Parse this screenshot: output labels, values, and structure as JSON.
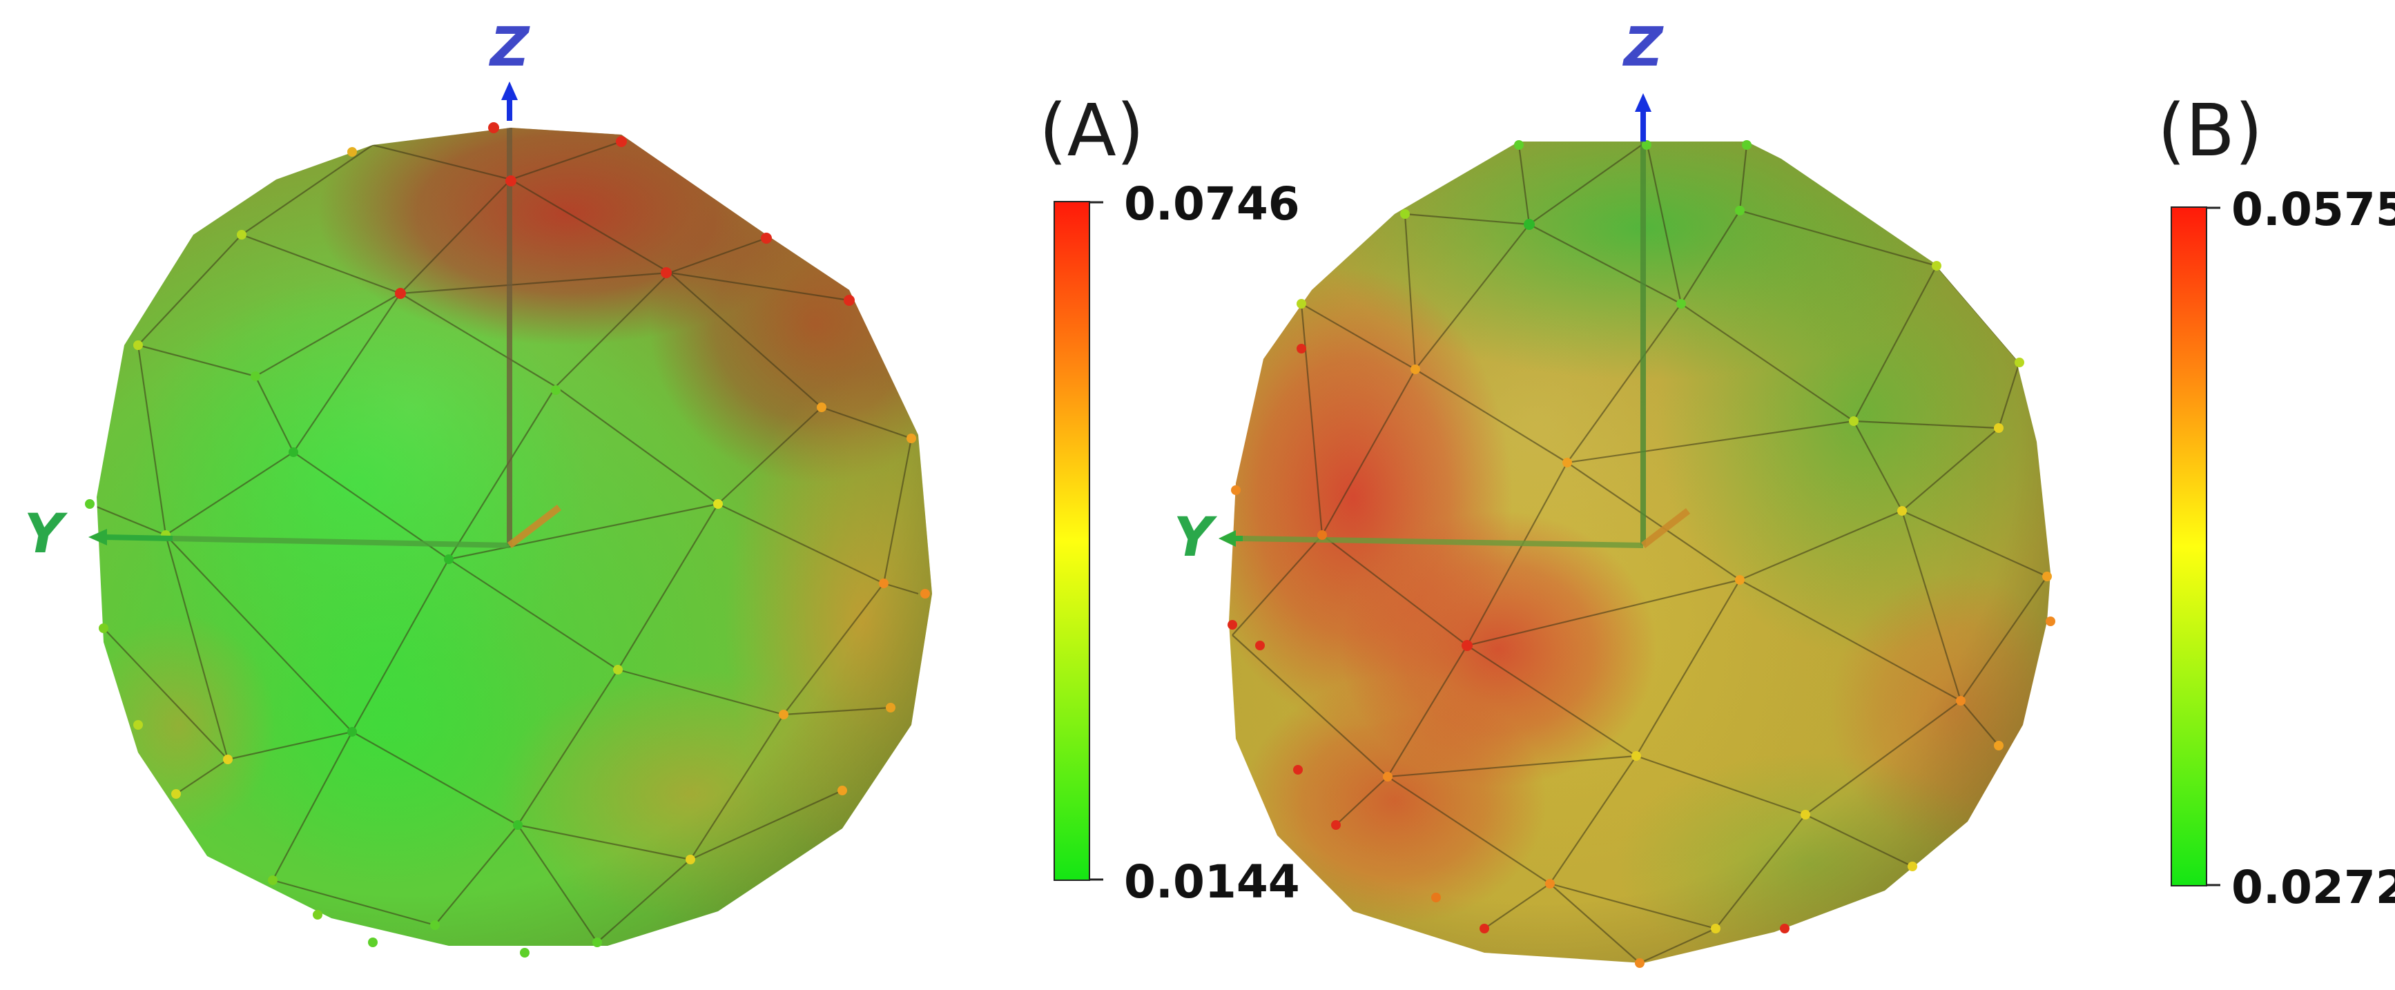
{
  "panels": [
    {
      "id": "A",
      "label": "(A)",
      "axes": {
        "z": "Z",
        "y": "Y"
      },
      "colorbar": {
        "max": "0.0746",
        "min": "0.0144",
        "max_color": "#ff1a0a",
        "mid_color": "#ffff10",
        "min_color": "#14e614"
      }
    },
    {
      "id": "B",
      "label": "(B)",
      "axes": {
        "z": "Z",
        "y": "Y"
      },
      "colorbar": {
        "max": "0.0575",
        "min": "0.0272",
        "max_color": "#ff1a0a",
        "mid_color": "#ffff10",
        "min_color": "#14e614"
      }
    }
  ],
  "colors": {
    "z_axis": "#2233cc",
    "y_axis": "#22aa44",
    "hot": "#d8352a",
    "warm": "#e0a030",
    "cool": "#44cc33"
  }
}
